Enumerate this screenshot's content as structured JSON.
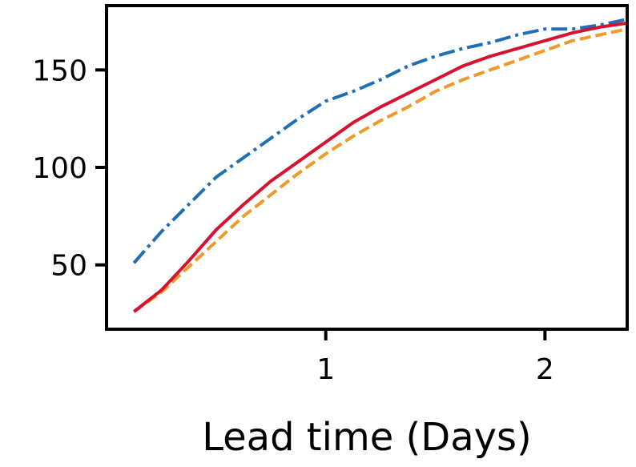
{
  "chart_data": {
    "type": "line",
    "title": "",
    "xlabel": "Lead time (Days)",
    "ylabel": "",
    "xlim": [
      0,
      2.375
    ],
    "ylim": [
      17,
      183
    ],
    "xticks": [
      1,
      2
    ],
    "xtick_labels": [
      "1",
      "2"
    ],
    "yticks": [
      50,
      100,
      150
    ],
    "ytick_labels": [
      "50",
      "100",
      "150"
    ],
    "grid": false,
    "legend": "none",
    "series": [
      {
        "color": "#1f6fb4",
        "dash": "dashdot",
        "x": [
          0.125,
          0.25,
          0.375,
          0.5,
          0.625,
          0.75,
          0.875,
          1.0,
          1.125,
          1.25,
          1.375,
          1.5,
          1.625,
          1.75,
          1.875,
          2.0,
          2.125,
          2.25,
          2.375
        ],
        "y": [
          51,
          67,
          81,
          95,
          105,
          115,
          125,
          134,
          139,
          145,
          152,
          157,
          161,
          164,
          168,
          171,
          171,
          173,
          176
        ]
      },
      {
        "color": "#f09a2a",
        "dash": "dashed",
        "x": [
          0.125,
          0.25,
          0.375,
          0.5,
          0.625,
          0.75,
          0.875,
          1.0,
          1.125,
          1.25,
          1.375,
          1.5,
          1.625,
          1.75,
          1.875,
          2.0,
          2.125,
          2.25,
          2.375
        ],
        "y": [
          26,
          36,
          49,
          62,
          75,
          86,
          97,
          107,
          116,
          124,
          131,
          139,
          145,
          150,
          155,
          160,
          165,
          168,
          171
        ]
      },
      {
        "color": "#d7112e",
        "dash": "solid",
        "x": [
          0.125,
          0.25,
          0.375,
          0.5,
          0.625,
          0.75,
          0.875,
          1.0,
          1.125,
          1.25,
          1.375,
          1.5,
          1.625,
          1.75,
          1.875,
          2.0,
          2.125,
          2.25,
          2.375
        ],
        "y": [
          26,
          37,
          52,
          68,
          81,
          93,
          103,
          113,
          123,
          131,
          138,
          145,
          152,
          157,
          161,
          165,
          169,
          172,
          174
        ]
      }
    ]
  }
}
